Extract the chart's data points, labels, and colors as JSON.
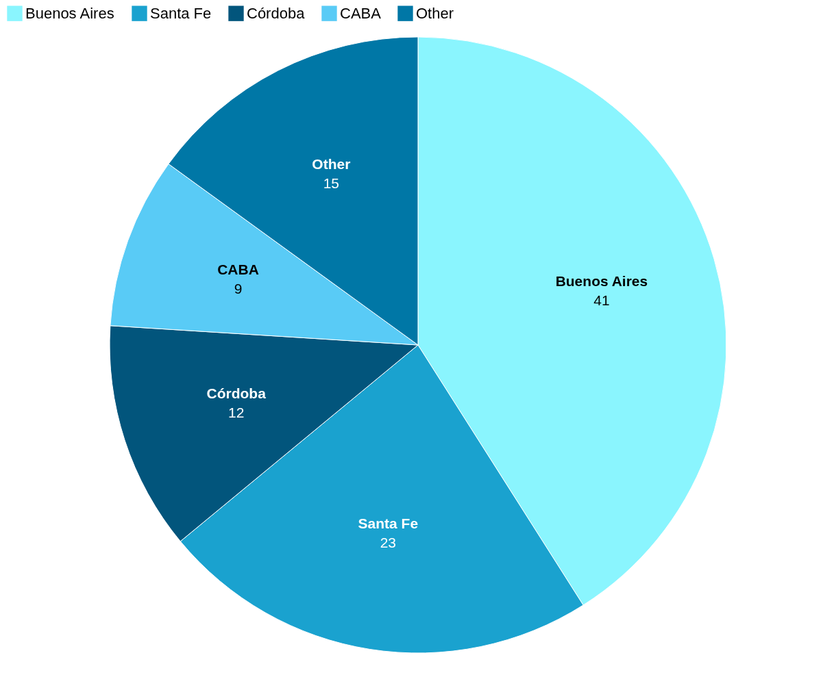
{
  "chart_data": {
    "type": "pie",
    "categories": [
      "Buenos Aires",
      "Santa Fe",
      "Córdoba",
      "CABA",
      "Other"
    ],
    "values": [
      41,
      23,
      12,
      9,
      15
    ],
    "colors": [
      "#8af5fe",
      "#1aa2cf",
      "#02557c",
      "#59cbf6",
      "#0077a6"
    ],
    "data_labels": true,
    "legend": "top left"
  }
}
